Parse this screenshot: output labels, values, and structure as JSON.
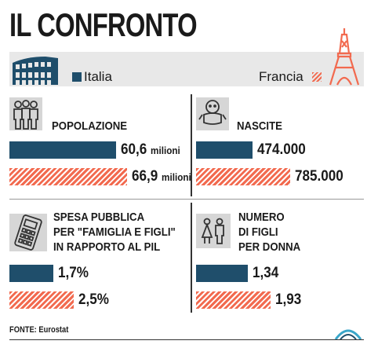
{
  "title": "IL CONFRONTO",
  "legend": {
    "italy_label": "Italia",
    "france_label": "Francia",
    "italy_color": "#1f4e6b",
    "france_color": "#f26a4f"
  },
  "chart_data": [
    {
      "type": "bar",
      "title": "POPOLAZIONE",
      "icon": "people-icon",
      "series": [
        {
          "name": "Italia",
          "value": 60.6,
          "label": "60,6",
          "unit": "milioni"
        },
        {
          "name": "Francia",
          "value": 66.9,
          "label": "66,9",
          "unit": "milioni"
        }
      ]
    },
    {
      "type": "bar",
      "title": "NASCITE",
      "icon": "baby-icon",
      "series": [
        {
          "name": "Italia",
          "value": 474000,
          "label": "474.000",
          "unit": ""
        },
        {
          "name": "Francia",
          "value": 785000,
          "label": "785.000",
          "unit": ""
        }
      ]
    },
    {
      "type": "bar",
      "title": "SPESA PUBBLICA PER \"FAMIGLIA E FIGLI\" IN RAPPORTO AL PIL",
      "title_lines": [
        "SPESA PUBBLICA",
        "PER \"FAMIGLIA E FIGLI\"",
        "IN RAPPORTO AL PIL"
      ],
      "icon": "calculator-icon",
      "series": [
        {
          "name": "Italia",
          "value": 1.7,
          "label": "1,7%",
          "unit": ""
        },
        {
          "name": "Francia",
          "value": 2.5,
          "label": "2,5%",
          "unit": ""
        }
      ]
    },
    {
      "type": "bar",
      "title": "NUMERO DI FIGLI PER DONNA",
      "title_lines": [
        "NUMERO",
        "DI FIGLI",
        "PER DONNA"
      ],
      "icon": "family-icon",
      "series": [
        {
          "name": "Italia",
          "value": 1.34,
          "label": "1,34",
          "unit": ""
        },
        {
          "name": "Francia",
          "value": 1.93,
          "label": "1,93",
          "unit": ""
        }
      ]
    }
  ],
  "source": "FONTE: Eurostat"
}
